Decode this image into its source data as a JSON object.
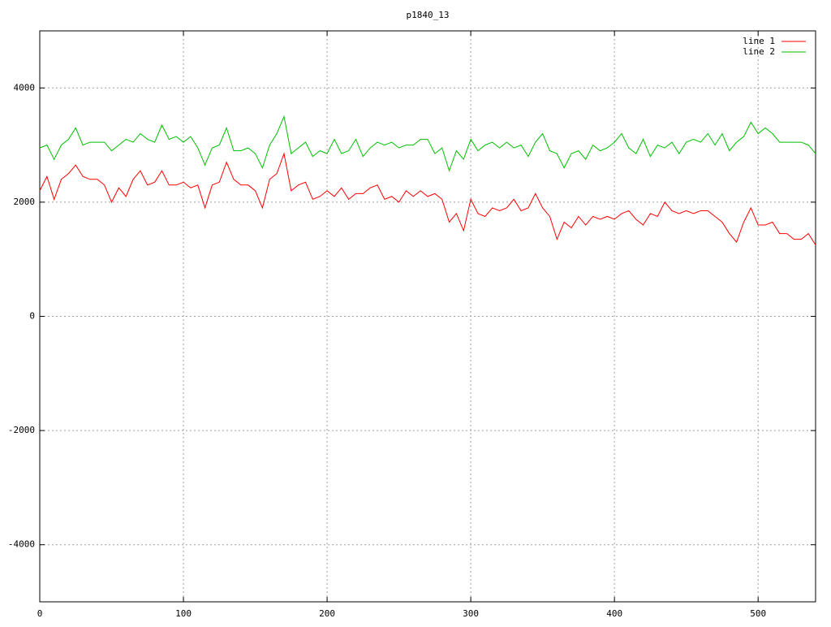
{
  "chart_data": {
    "type": "line",
    "title": "p1840_13",
    "x": [
      0,
      5,
      10,
      15,
      20,
      25,
      30,
      35,
      40,
      45,
      50,
      55,
      60,
      65,
      70,
      75,
      80,
      85,
      90,
      95,
      100,
      105,
      110,
      115,
      120,
      125,
      130,
      135,
      140,
      145,
      150,
      155,
      160,
      165,
      170,
      175,
      180,
      185,
      190,
      195,
      200,
      205,
      210,
      215,
      220,
      225,
      230,
      235,
      240,
      245,
      250,
      255,
      260,
      265,
      270,
      275,
      280,
      285,
      290,
      295,
      300,
      305,
      310,
      315,
      320,
      325,
      330,
      335,
      340,
      345,
      350,
      355,
      360,
      365,
      370,
      375,
      380,
      385,
      390,
      395,
      400,
      405,
      410,
      415,
      420,
      425,
      430,
      435,
      440,
      445,
      450,
      455,
      460,
      465,
      470,
      475,
      480,
      485,
      490,
      495,
      500,
      505,
      510,
      515,
      520,
      525,
      530,
      535,
      540
    ],
    "series": [
      {
        "name": "line 1",
        "color": "#ff0000",
        "values": [
          2200,
          2450,
          2050,
          2400,
          2500,
          2650,
          2450,
          2400,
          2400,
          2300,
          2000,
          2250,
          2100,
          2400,
          2550,
          2300,
          2350,
          2550,
          2300,
          2300,
          2350,
          2250,
          2300,
          1900,
          2300,
          2350,
          2700,
          2400,
          2300,
          2300,
          2200,
          1900,
          2400,
          2500,
          2850,
          2200,
          2300,
          2350,
          2050,
          2100,
          2200,
          2100,
          2250,
          2050,
          2150,
          2150,
          2250,
          2300,
          2050,
          2100,
          2000,
          2200,
          2100,
          2200,
          2100,
          2150,
          2050,
          1650,
          1800,
          1500,
          2050,
          1800,
          1750,
          1900,
          1850,
          1900,
          2050,
          1850,
          1900,
          2150,
          1900,
          1750,
          1350,
          1650,
          1550,
          1750,
          1600,
          1750,
          1700,
          1750,
          1700,
          1800,
          1850,
          1700,
          1600,
          1800,
          1750,
          2000,
          1850,
          1800,
          1850,
          1800,
          1850,
          1850,
          1750,
          1650,
          1450,
          1300,
          1650,
          1900,
          1600,
          1600,
          1650,
          1450,
          1450,
          1350,
          1350,
          1450,
          1250
        ]
      },
      {
        "name": "line 2",
        "color": "#00c000",
        "values": [
          2950,
          3000,
          2750,
          3000,
          3100,
          3300,
          3000,
          3050,
          3050,
          3050,
          2900,
          3000,
          3100,
          3050,
          3200,
          3100,
          3050,
          3350,
          3100,
          3150,
          3050,
          3150,
          2950,
          2650,
          2950,
          3000,
          3300,
          2900,
          2900,
          2950,
          2850,
          2600,
          3000,
          3200,
          3500,
          2850,
          2950,
          3050,
          2800,
          2900,
          2850,
          3100,
          2850,
          2900,
          3100,
          2800,
          2950,
          3050,
          3000,
          3050,
          2950,
          3000,
          3000,
          3100,
          3100,
          2850,
          2950,
          2550,
          2900,
          2750,
          3100,
          2900,
          3000,
          3050,
          2950,
          3050,
          2950,
          3000,
          2800,
          3050,
          3200,
          2900,
          2850,
          2600,
          2850,
          2900,
          2750,
          3000,
          2900,
          2950,
          3050,
          3200,
          2950,
          2850,
          3100,
          2800,
          3000,
          2950,
          3050,
          2850,
          3050,
          3100,
          3050,
          3200,
          3000,
          3200,
          2900,
          3050,
          3150,
          3400,
          3200,
          3300,
          3200,
          3050,
          3050,
          3050,
          3050,
          3000,
          2850
        ]
      }
    ],
    "xlim": [
      0,
      540
    ],
    "ylim": [
      -5000,
      5000
    ],
    "xticks": [
      0,
      100,
      200,
      300,
      400,
      500
    ],
    "yticks": [
      -4000,
      -2000,
      0,
      2000,
      4000
    ],
    "grid": true,
    "legend": "top-right"
  }
}
